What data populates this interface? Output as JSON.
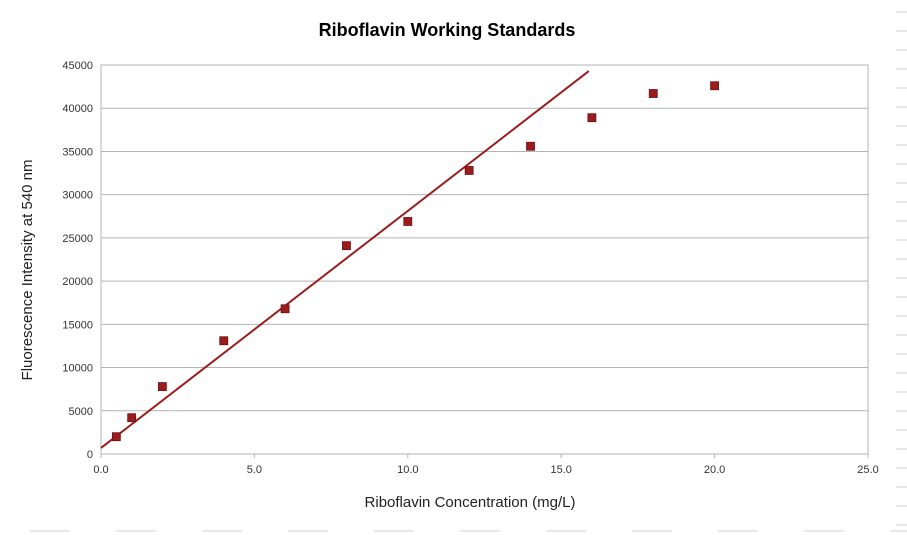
{
  "chart_data": {
    "type": "scatter",
    "title": "Riboflavin Working Standards",
    "xlabel": "Riboflavin Concentration (mg/L)",
    "ylabel": "Fluorescence Intensity at 540 nm",
    "xlim": [
      0,
      25
    ],
    "ylim": [
      0,
      45000
    ],
    "x_ticks": [
      0,
      5,
      10,
      15,
      20,
      25
    ],
    "x_tick_labels": [
      "0.0",
      "5.0",
      "10.0",
      "15.0",
      "20.0",
      "25.0"
    ],
    "y_ticks": [
      0,
      5000,
      10000,
      15000,
      20000,
      25000,
      30000,
      35000,
      40000,
      45000
    ],
    "y_tick_labels": [
      "0",
      "5000",
      "10000",
      "15000",
      "20000",
      "25000",
      "30000",
      "35000",
      "40000",
      "45000"
    ],
    "grid": "horizontal",
    "legend": "none",
    "series": [
      {
        "color": "#9b1c1c",
        "points": [
          {
            "x": 0.5,
            "y": 2000
          },
          {
            "x": 1.0,
            "y": 4200
          },
          {
            "x": 2.0,
            "y": 7800
          },
          {
            "x": 4.0,
            "y": 13100
          },
          {
            "x": 6.0,
            "y": 16800
          },
          {
            "x": 8.0,
            "y": 24100
          },
          {
            "x": 10.0,
            "y": 26900
          },
          {
            "x": 12.0,
            "y": 32800
          },
          {
            "x": 14.0,
            "y": 35600
          },
          {
            "x": 16.0,
            "y": 38900
          },
          {
            "x": 18.0,
            "y": 41700
          },
          {
            "x": 20.0,
            "y": 42600
          }
        ]
      }
    ],
    "trendline": {
      "type": "linear",
      "color": "#9b1c1c",
      "from": {
        "x": 0.0,
        "y": 700
      },
      "to": {
        "x": 15.9,
        "y": 44300
      }
    }
  }
}
